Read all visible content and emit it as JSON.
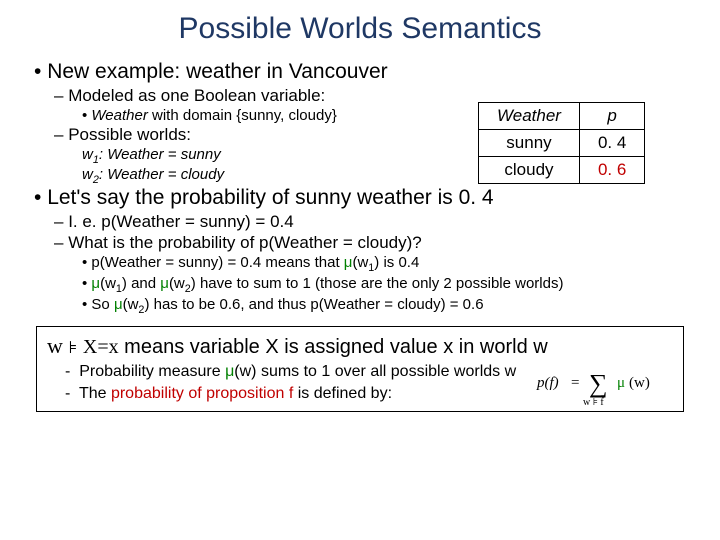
{
  "title": "Possible Worlds Semantics",
  "bullets": {
    "example": "New example: weather in Vancouver",
    "modeled": "Modeled as one Boolean variable:",
    "weather_domain_pre": "Weather",
    "weather_domain_post": "  with domain {sunny, cloudy}",
    "possible_worlds": "Possible worlds:",
    "w1_pre": "w",
    "w1_sub": "1",
    "w1_post": ": Weather = sunny",
    "w2_pre": "w",
    "w2_sub": "2",
    "w2_post": ": Weather = cloudy",
    "lets_say": "Let's say the probability of sunny weather is 0. 4",
    "ie": "I. e. p(Weather = sunny) = 0.4",
    "what_is": "What is the probability of p(Weather = cloudy)?",
    "exp1_a": "p(Weather = sunny) = 0.4 means that ",
    "exp1_b": "(w",
    "exp1_sub": "1",
    "exp1_c": ") is 0.4",
    "exp2_a": "(w",
    "exp2_s1": "1",
    "exp2_b": ") and ",
    "exp2_c": "(w",
    "exp2_s2": "2",
    "exp2_d": ") have to sum to 1 (those are the only 2 possible worlds)",
    "exp3_a": "So ",
    "exp3_b": "(w",
    "exp3_s": "2",
    "exp3_c": ") has to be 0.6, and thus p(Weather = cloudy) = 0.6"
  },
  "table": {
    "h1": "Weather",
    "h2": "p",
    "r1c1": "sunny",
    "r1c2": "0. 4",
    "r2c1": "cloudy",
    "r2c2": "0. 6"
  },
  "def": {
    "w": "w",
    "models": "⊧",
    "xeq": "X=x",
    "rest": " means variable X is assigned value x in world w",
    "line1a": "Probability measure ",
    "line1b": "(w) sums to 1 over all possible worlds w",
    "line2a": "The ",
    "line2b": "probability of proposition f",
    "line2c": " is defined by:"
  },
  "formula": {
    "pf": "p(f)",
    "eq": "=",
    "sum": "∑",
    "mu": "μ",
    "w": "(w)",
    "under": "w ⊧ f"
  },
  "colors": {
    "title": "#1f3864",
    "red": "#c00000",
    "green": "#008000",
    "text": "#000000",
    "bg": "#ffffff",
    "border": "#000000"
  }
}
